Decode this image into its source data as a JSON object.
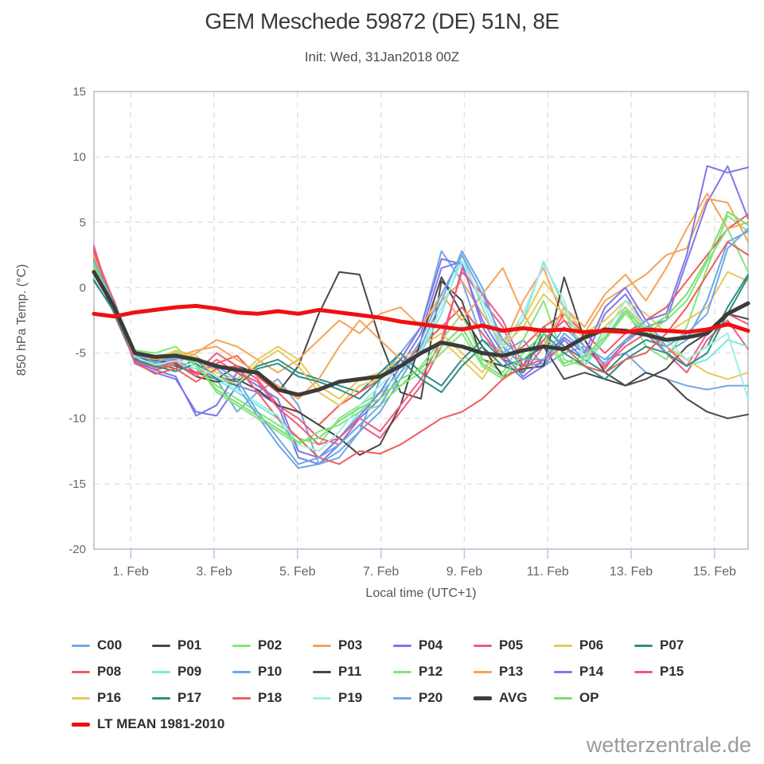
{
  "header": {
    "title": "GEM Meschede 59872 (DE) 51N, 8E",
    "subtitle": "Init: Wed, 31Jan2018 00Z"
  },
  "watermark": {
    "text": "wetterzentrale.de"
  },
  "chart_data": {
    "type": "line",
    "title": "GEM Meschede 59872 (DE) 51N, 8E",
    "subtitle": "Init: Wed, 31Jan2018 00Z",
    "xlabel": "Local time (UTC+1)",
    "ylabel": "850 hPa Temp. (°C)",
    "ylim": [
      -20,
      15
    ],
    "yticks": [
      15,
      10,
      5,
      0,
      -5,
      -10,
      -15,
      -20
    ],
    "x_domain": [
      0,
      16
    ],
    "x_step": 0.5,
    "xticks": [
      {
        "t": 0.9,
        "label": "1. Feb"
      },
      {
        "t": 2.94,
        "label": "3. Feb"
      },
      {
        "t": 4.98,
        "label": "5. Feb"
      },
      {
        "t": 7.02,
        "label": "7. Feb"
      },
      {
        "t": 9.06,
        "label": "9. Feb"
      },
      {
        "t": 11.1,
        "label": "11. Feb"
      },
      {
        "t": 13.14,
        "label": "13. Feb"
      },
      {
        "t": 15.18,
        "label": "15. Feb"
      }
    ],
    "grid": true,
    "legend_position": "bottom",
    "series": [
      {
        "name": "C00",
        "color": "#74a9e0",
        "width": 2,
        "values": [
          2.0,
          -1.0,
          -5.5,
          -6.0,
          -5.0,
          -5.5,
          -7.0,
          -9.5,
          -8.0,
          -7.0,
          -9.0,
          -13.5,
          -13.0,
          -11.0,
          -7.0,
          -5.0,
          -3.0,
          2.8,
          0.5,
          -4.0,
          -5.0,
          -4.0,
          -6.0,
          -5.0,
          -4.5,
          -5.5,
          -5.0,
          -6.5,
          -7.0,
          -7.5,
          -7.8,
          -7.5,
          -7.5
        ]
      },
      {
        "name": "P01",
        "color": "#474747",
        "width": 2,
        "values": [
          1.5,
          -2.0,
          -5.5,
          -5.5,
          -6.0,
          -6.5,
          -7.0,
          -6.0,
          -6.5,
          -8.0,
          -6.0,
          -2.0,
          1.2,
          1.0,
          -4.0,
          -8.0,
          -8.5,
          0.5,
          -1.0,
          -5.5,
          -6.0,
          -5.5,
          -4.5,
          -7.0,
          -6.5,
          -7.0,
          -7.5,
          -6.5,
          -7.0,
          -8.5,
          -9.5,
          -10.0,
          -9.7
        ]
      },
      {
        "name": "P02",
        "color": "#84e57b",
        "width": 2,
        "values": [
          1.8,
          -1.2,
          -4.8,
          -5.0,
          -4.5,
          -6.0,
          -7.5,
          -8.5,
          -9.5,
          -10.5,
          -11.5,
          -12.0,
          -10.0,
          -9.0,
          -8.0,
          -7.5,
          -6.0,
          -4.0,
          -2.0,
          -5.5,
          -6.5,
          -4.0,
          -1.0,
          -5.5,
          -6.0,
          -3.0,
          -1.5,
          -4.5,
          -5.5,
          -3.0,
          1.5,
          5.5,
          4.3
        ]
      },
      {
        "name": "P03",
        "color": "#f4a45a",
        "width": 2,
        "values": [
          2.5,
          -1.8,
          -5.2,
          -6.2,
          -5.8,
          -5.0,
          -4.0,
          -4.5,
          -5.5,
          -6.5,
          -5.5,
          -4.0,
          -2.5,
          -3.5,
          -2.0,
          -1.5,
          -3.0,
          -1.0,
          0.5,
          -2.0,
          -4.5,
          -1.0,
          1.5,
          -2.5,
          -3.5,
          -1.0,
          0.0,
          1.0,
          2.5,
          3.0,
          6.8,
          6.5,
          3.5
        ]
      },
      {
        "name": "P04",
        "color": "#7e78e8",
        "width": 2,
        "values": [
          3.0,
          -1.5,
          -5.8,
          -6.5,
          -7.0,
          -9.5,
          -9.8,
          -7.5,
          -8.0,
          -9.0,
          -13.0,
          -13.5,
          -12.0,
          -10.0,
          -8.5,
          -6.0,
          -3.5,
          1.5,
          2.0,
          -3.0,
          -5.5,
          -7.0,
          -6.0,
          -4.0,
          -5.5,
          -2.0,
          -0.5,
          -3.0,
          -2.5,
          2.0,
          6.5,
          9.3,
          5.3
        ]
      },
      {
        "name": "P05",
        "color": "#ef5b7e",
        "width": 2,
        "values": [
          3.2,
          -2.0,
          -5.5,
          -6.0,
          -5.5,
          -6.5,
          -5.0,
          -6.0,
          -7.0,
          -9.0,
          -10.0,
          -11.5,
          -12.0,
          -10.5,
          -11.5,
          -9.5,
          -7.5,
          -4.5,
          1.5,
          -1.0,
          -3.0,
          -6.5,
          -4.5,
          -2.0,
          -4.0,
          -6.0,
          -4.5,
          -3.5,
          -5.0,
          -6.5,
          -4.0,
          -2.5,
          -4.7
        ]
      },
      {
        "name": "P06",
        "color": "#e6c95c",
        "width": 2,
        "values": [
          1.5,
          -1.5,
          -5.0,
          -5.5,
          -4.8,
          -5.2,
          -6.5,
          -7.0,
          -5.5,
          -4.5,
          -5.5,
          -7.5,
          -8.5,
          -7.0,
          -6.5,
          -5.5,
          -4.5,
          -3.5,
          -5.0,
          -6.5,
          -4.0,
          -2.5,
          0.5,
          -1.5,
          -3.5,
          -2.5,
          -1.0,
          -2.0,
          -3.5,
          -2.5,
          -1.5,
          1.2,
          0.5
        ]
      },
      {
        "name": "P07",
        "color": "#2f8e84",
        "width": 2,
        "values": [
          0.5,
          -1.8,
          -5.3,
          -5.8,
          -6.2,
          -5.5,
          -6.8,
          -7.2,
          -6.0,
          -5.5,
          -6.5,
          -7.0,
          -7.5,
          -8.0,
          -6.5,
          -5.0,
          -6.5,
          -7.5,
          -5.5,
          -4.0,
          -5.5,
          -6.0,
          -3.0,
          -4.5,
          -5.5,
          -6.5,
          -5.0,
          -4.0,
          -4.5,
          -5.5,
          -4.5,
          -1.5,
          1.0
        ]
      },
      {
        "name": "P08",
        "color": "#f05c5c",
        "width": 2,
        "values": [
          2.8,
          -1.2,
          -5.6,
          -6.3,
          -5.9,
          -6.6,
          -5.8,
          -5.2,
          -6.8,
          -8.0,
          -9.5,
          -10.5,
          -9.0,
          -8.0,
          -7.0,
          -6.0,
          -4.5,
          -3.0,
          -1.5,
          -3.5,
          -5.5,
          -4.5,
          -3.0,
          -2.0,
          -3.5,
          -5.0,
          -3.5,
          -2.5,
          -1.5,
          0.5,
          2.5,
          4.5,
          5.6
        ]
      },
      {
        "name": "P09",
        "color": "#7ce8dc",
        "width": 2,
        "values": [
          1.0,
          -1.6,
          -5.4,
          -6.0,
          -5.8,
          -6.2,
          -7.0,
          -8.0,
          -9.0,
          -10.0,
          -12.5,
          -13.0,
          -11.5,
          -9.5,
          -8.0,
          -6.5,
          -5.0,
          -2.0,
          2.5,
          -1.5,
          -5.0,
          -2.5,
          2.0,
          -1.5,
          -6.0,
          -4.0,
          -1.5,
          -3.5,
          -4.5,
          -6.0,
          -5.5,
          -4.0,
          -4.5
        ]
      },
      {
        "name": "P10",
        "color": "#6aa6e8",
        "width": 2,
        "values": [
          2.2,
          -1.4,
          -5.2,
          -5.8,
          -5.4,
          -5.6,
          -6.2,
          -7.5,
          -9.8,
          -12.0,
          -13.8,
          -13.5,
          -12.5,
          -11.0,
          -9.5,
          -7.0,
          -4.5,
          -1.0,
          2.8,
          0.0,
          -4.5,
          -6.0,
          -5.8,
          -3.5,
          -4.8,
          -5.8,
          -4.2,
          -3.0,
          -5.0,
          -4.0,
          -1.0,
          3.5,
          4.3
        ]
      },
      {
        "name": "P11",
        "color": "#474747",
        "width": 2,
        "values": [
          1.3,
          -1.7,
          -5.4,
          -5.6,
          -5.8,
          -6.8,
          -7.2,
          -7.0,
          -7.8,
          -9.0,
          -9.5,
          -10.5,
          -11.5,
          -12.8,
          -12.0,
          -9.0,
          -4.0,
          0.8,
          -2.0,
          -4.5,
          -6.8,
          -6.2,
          -6.0,
          0.8,
          -4.0,
          -6.5,
          -7.5,
          -7.0,
          -6.2,
          -4.5,
          -3.5,
          -2.0,
          -2.4
        ]
      },
      {
        "name": "P12",
        "color": "#84e57b",
        "width": 2,
        "values": [
          1.6,
          -1.3,
          -4.9,
          -5.2,
          -5.0,
          -5.8,
          -8.0,
          -9.0,
          -10.0,
          -11.0,
          -12.0,
          -11.0,
          -10.5,
          -9.5,
          -9.0,
          -7.5,
          -6.5,
          -5.0,
          -3.5,
          -6.0,
          -7.0,
          -5.5,
          -4.0,
          -6.0,
          -5.5,
          -4.0,
          -2.0,
          -3.5,
          -2.5,
          -1.0,
          2.0,
          4.5,
          1.2
        ]
      },
      {
        "name": "P13",
        "color": "#f4a45a",
        "width": 2,
        "values": [
          2.4,
          -1.9,
          -5.1,
          -5.5,
          -5.3,
          -4.8,
          -4.5,
          -5.5,
          -6.5,
          -7.5,
          -8.5,
          -7.0,
          -4.5,
          -2.5,
          -4.0,
          -5.5,
          -3.0,
          -0.5,
          -2.5,
          -0.5,
          1.5,
          -2.0,
          -4.5,
          -1.5,
          -3.0,
          -0.5,
          1.0,
          -1.0,
          1.5,
          4.5,
          7.2,
          4.5,
          5.0
        ]
      },
      {
        "name": "P14",
        "color": "#7e78e8",
        "width": 2,
        "values": [
          2.9,
          -1.6,
          -5.7,
          -6.3,
          -6.8,
          -9.8,
          -9.0,
          -6.5,
          -7.5,
          -8.5,
          -12.5,
          -13.0,
          -11.5,
          -9.8,
          -8.0,
          -5.5,
          -3.0,
          2.2,
          1.8,
          -2.5,
          -5.0,
          -6.8,
          -5.5,
          -3.8,
          -5.0,
          -1.5,
          0.0,
          -2.5,
          -2.0,
          2.5,
          9.3,
          8.8,
          9.2
        ]
      },
      {
        "name": "P15",
        "color": "#ef5b7e",
        "width": 2,
        "values": [
          3.1,
          -2.1,
          -5.6,
          -6.1,
          -5.7,
          -6.8,
          -5.5,
          -6.5,
          -7.2,
          -9.2,
          -10.5,
          -12.0,
          -11.5,
          -10.0,
          -11.0,
          -9.0,
          -7.0,
          -4.0,
          1.2,
          -0.5,
          -2.5,
          -6.0,
          -4.0,
          -2.5,
          -4.5,
          -6.2,
          -4.0,
          -3.0,
          -4.5,
          -6.0,
          -3.5,
          -2.0,
          -2.8
        ]
      },
      {
        "name": "P16",
        "color": "#e6c95c",
        "width": 2,
        "values": [
          1.4,
          -1.4,
          -4.9,
          -5.4,
          -4.9,
          -5.4,
          -6.8,
          -7.4,
          -5.8,
          -4.8,
          -6.0,
          -8.0,
          -9.0,
          -7.5,
          -7.0,
          -6.0,
          -5.0,
          -4.0,
          -5.5,
          -7.0,
          -4.5,
          -3.0,
          -0.5,
          -2.0,
          -4.0,
          -3.0,
          -1.5,
          -3.0,
          -4.5,
          -5.5,
          -6.5,
          -7.0,
          -6.5
        ]
      },
      {
        "name": "P17",
        "color": "#2f8e84",
        "width": 2,
        "values": [
          0.6,
          -1.9,
          -5.5,
          -6.0,
          -6.4,
          -5.8,
          -7.0,
          -7.5,
          -6.2,
          -5.8,
          -6.8,
          -7.2,
          -7.8,
          -8.5,
          -7.0,
          -5.5,
          -7.0,
          -8.0,
          -6.0,
          -4.5,
          -6.0,
          -6.5,
          -3.5,
          -5.0,
          -6.0,
          -7.0,
          -5.5,
          -4.5,
          -5.0,
          -6.0,
          -5.0,
          -2.0,
          0.8
        ]
      },
      {
        "name": "P18",
        "color": "#f05c5c",
        "width": 2,
        "values": [
          2.7,
          -1.1,
          -5.7,
          -6.6,
          -6.2,
          -7.2,
          -6.2,
          -6.0,
          -8.0,
          -10.0,
          -11.5,
          -13.0,
          -13.5,
          -12.5,
          -12.7,
          -12.0,
          -11.0,
          -10.0,
          -9.5,
          -8.5,
          -7.0,
          -6.0,
          -5.5,
          -4.5,
          -6.0,
          -6.5,
          -5.5,
          -5.0,
          -3.5,
          -1.5,
          1.0,
          3.5,
          2.5
        ]
      },
      {
        "name": "P19",
        "color": "#a0eee6",
        "width": 2,
        "values": [
          1.1,
          -1.7,
          -5.3,
          -5.9,
          -5.6,
          -6.0,
          -6.8,
          -7.8,
          -8.8,
          -9.8,
          -12.0,
          -12.5,
          -11.0,
          -9.0,
          -7.5,
          -6.0,
          -4.8,
          -1.5,
          2.0,
          -1.0,
          -4.5,
          -2.0,
          1.8,
          -1.0,
          -5.5,
          -3.5,
          -1.0,
          -3.0,
          -4.0,
          -5.5,
          -4.5,
          -3.5,
          -8.5
        ]
      },
      {
        "name": "P20",
        "color": "#74a9e0",
        "width": 2,
        "values": [
          2.1,
          -1.3,
          -5.1,
          -5.7,
          -5.3,
          -5.5,
          -6.0,
          -7.0,
          -9.5,
          -11.5,
          -13.5,
          -13.0,
          -12.0,
          -10.5,
          -9.0,
          -6.5,
          -4.0,
          -0.5,
          2.5,
          -0.5,
          -4.0,
          -5.5,
          -5.5,
          -3.0,
          -4.5,
          -5.5,
          -4.0,
          -2.5,
          -4.5,
          -3.5,
          -2.0,
          3.0,
          4.5
        ]
      },
      {
        "name": "AVG",
        "color": "#3b3b3b",
        "width": 5,
        "values": [
          1.2,
          -1.5,
          -5.0,
          -5.3,
          -5.2,
          -5.5,
          -6.0,
          -6.3,
          -6.5,
          -7.8,
          -8.2,
          -7.8,
          -7.2,
          -7.0,
          -6.8,
          -6.0,
          -5.0,
          -4.2,
          -4.5,
          -5.0,
          -5.2,
          -4.8,
          -4.5,
          -4.7,
          -3.8,
          -3.2,
          -3.3,
          -3.6,
          -4.0,
          -3.8,
          -3.5,
          -2.0,
          -1.2
        ]
      },
      {
        "name": "OP",
        "color": "#7bdf70",
        "width": 2,
        "values": [
          1.7,
          -1.4,
          -5.0,
          -5.3,
          -5.1,
          -5.9,
          -7.8,
          -8.8,
          -9.8,
          -10.8,
          -11.8,
          -11.5,
          -10.2,
          -9.2,
          -8.5,
          -7.0,
          -6.2,
          -4.5,
          -3.0,
          -5.8,
          -6.8,
          -5.0,
          -3.5,
          -5.8,
          -5.2,
          -3.8,
          -1.8,
          -3.2,
          -2.2,
          -0.5,
          2.2,
          5.8,
          4.8
        ]
      },
      {
        "name": "LT MEAN 1981-2010",
        "color": "#ee1111",
        "width": 5,
        "values": [
          -2.0,
          -2.2,
          -1.9,
          -1.7,
          -1.5,
          -1.4,
          -1.6,
          -1.9,
          -2.0,
          -1.8,
          -2.0,
          -1.7,
          -1.9,
          -2.1,
          -2.3,
          -2.6,
          -2.8,
          -3.0,
          -3.2,
          -2.9,
          -3.3,
          -3.1,
          -3.3,
          -3.2,
          -3.4,
          -3.3,
          -3.4,
          -3.2,
          -3.3,
          -3.4,
          -3.2,
          -2.8,
          -3.3
        ]
      }
    ]
  }
}
